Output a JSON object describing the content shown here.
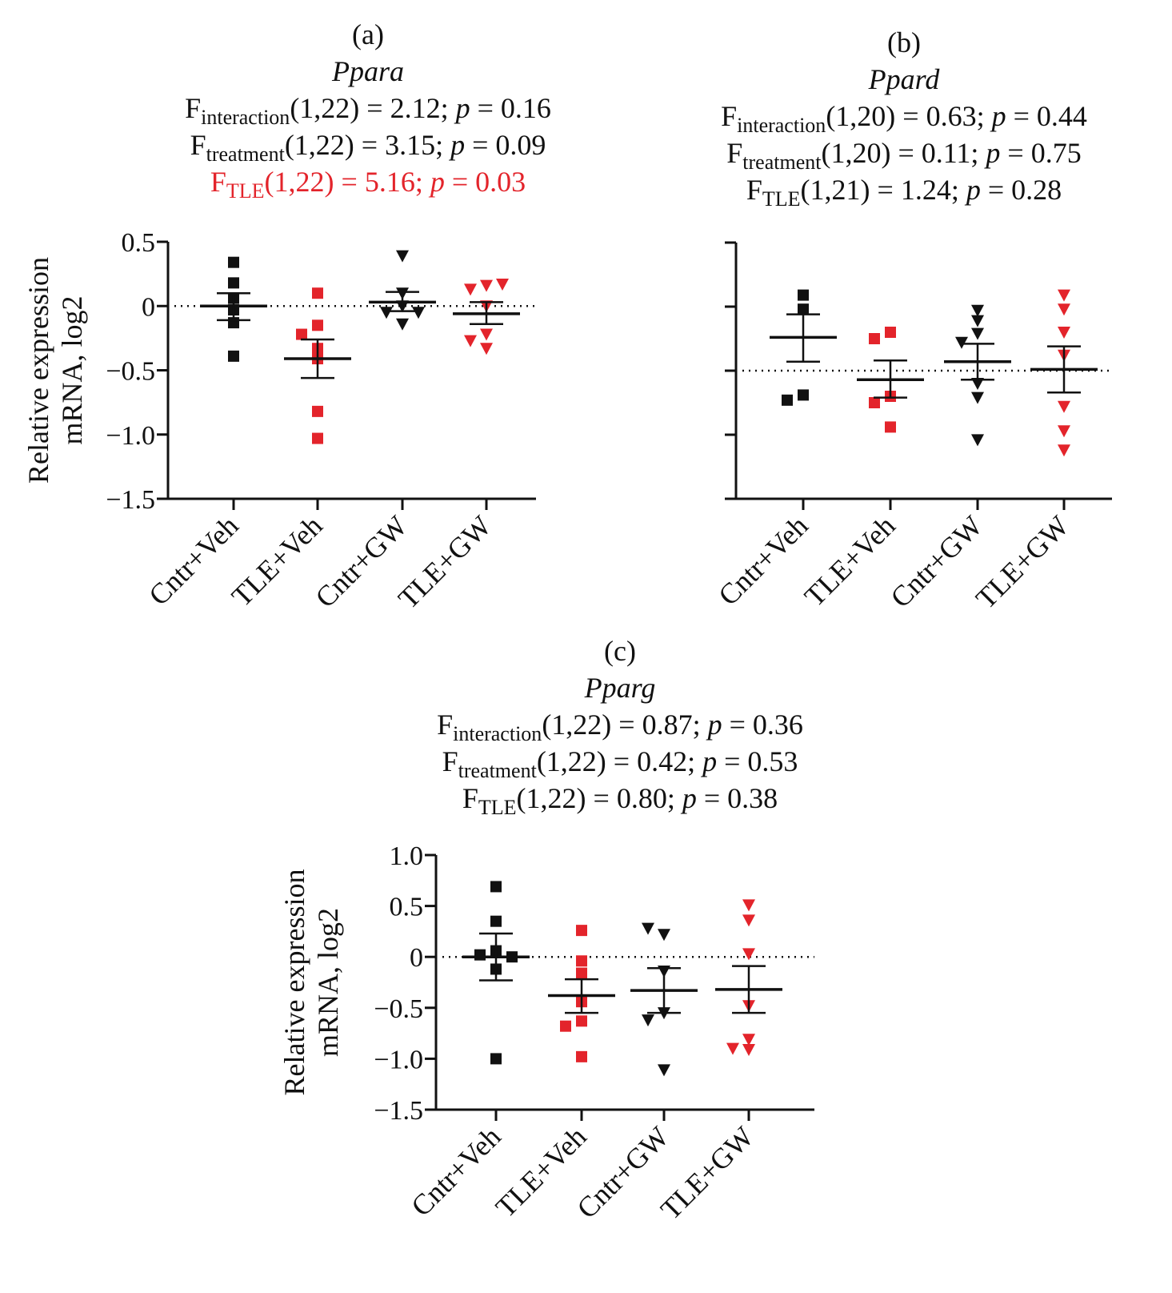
{
  "figure": {
    "panels": [
      {
        "label": "(a)",
        "gene": "Ppara",
        "stats": [
          {
            "name": "F",
            "sub": "interaction",
            "df": "(1,22)",
            "F": "2.12",
            "p": "0.16",
            "significant": false
          },
          {
            "name": "F",
            "sub": "treatment",
            "df": "(1,22)",
            "F": "3.15",
            "p": "0.09",
            "significant": false
          },
          {
            "name": "F",
            "sub": "TLE",
            "df": "(1,22)",
            "F": "5.16",
            "p": "0.03",
            "significant": true
          }
        ]
      },
      {
        "label": "(b)",
        "gene": "Ppard",
        "stats": [
          {
            "name": "F",
            "sub": "interaction",
            "df": "(1,20)",
            "F": "0.63",
            "p": "0.44",
            "significant": false
          },
          {
            "name": "F",
            "sub": "treatment",
            "df": "(1,20)",
            "F": "0.11",
            "p": "0.75",
            "significant": false
          },
          {
            "name": "F",
            "sub": "TLE",
            "df": "(1,21)",
            "F": "1.24",
            "p": "0.28",
            "significant": false
          }
        ]
      },
      {
        "label": "(c)",
        "gene": "Pparg",
        "stats": [
          {
            "name": "F",
            "sub": "interaction",
            "df": "(1,22)",
            "F": "0.87",
            "p": "0.36",
            "significant": false
          },
          {
            "name": "F",
            "sub": "treatment",
            "df": "(1,22)",
            "F": "0.42",
            "p": "0.53",
            "significant": false
          },
          {
            "name": "F",
            "sub": "TLE",
            "df": "(1,22)",
            "F": "0.80",
            "p": "0.38",
            "significant": false
          }
        ]
      }
    ],
    "colors": {
      "control": "#111111",
      "tle": "#e3242b",
      "significant_text": "#e3242b"
    }
  },
  "chart_data": [
    {
      "type": "scatter",
      "title": "Ppara",
      "panel": "(a)",
      "ylabel_line1": "Relative expression",
      "ylabel_line2": "mRNA, log2",
      "xlabel": "",
      "categories": [
        "Cntr+Veh",
        "TLE+Veh",
        "Cntr+GW",
        "TLE+GW"
      ],
      "ylim": [
        -1.5,
        0.5
      ],
      "yticks": [
        0.5,
        0,
        -1.0,
        -1.5,
        -0.5
      ],
      "ytick_labels": [
        "0.5",
        "0",
        "−1.0",
        "−1.5",
        "−0.5"
      ],
      "show_ytick_labels": true,
      "reference_line": 0,
      "series": [
        {
          "name": "Cntr+Veh",
          "marker": "square",
          "color": "control",
          "values": [
            0.34,
            0.18,
            0.06,
            -0.03,
            -0.13,
            -0.39
          ],
          "mean": 0.0,
          "sem_upper": 0.1,
          "sem_lower": -0.11
        },
        {
          "name": "TLE+Veh",
          "marker": "square",
          "color": "tle",
          "values": [
            0.1,
            -0.15,
            -0.22,
            -0.33,
            -0.41,
            -0.82,
            -1.03
          ],
          "mean": -0.41,
          "sem_upper": -0.26,
          "sem_lower": -0.56
        },
        {
          "name": "Cntr+GW",
          "marker": "triangle-down",
          "color": "control",
          "values": [
            0.39,
            0.1,
            0.0,
            -0.05,
            -0.05,
            -0.14
          ],
          "mean": 0.03,
          "sem_upper": 0.11,
          "sem_lower": -0.04
        },
        {
          "name": "TLE+GW",
          "marker": "triangle-down",
          "color": "tle",
          "values": [
            0.16,
            0.13,
            0.17,
            0.0,
            -0.22,
            -0.27,
            -0.33
          ],
          "mean": -0.06,
          "sem_upper": 0.03,
          "sem_lower": -0.14
        }
      ]
    },
    {
      "type": "scatter",
      "title": "Ppard",
      "panel": "(b)",
      "ylabel_line1": "",
      "ylabel_line2": "",
      "xlabel": "",
      "categories": [
        "Cntr+Veh",
        "TLE+Veh",
        "Cntr+GW",
        "TLE+GW"
      ],
      "ylim": [
        -1.0,
        1.0
      ],
      "yticks": [
        1.0,
        0.5,
        0,
        -0.5,
        -1.0
      ],
      "ytick_labels": [],
      "show_ytick_labels": false,
      "reference_line": 0,
      "series": [
        {
          "name": "Cntr+Veh",
          "marker": "square",
          "color": "control",
          "values": [
            0.59,
            0.48,
            -0.19,
            -0.23
          ],
          "mean": 0.26,
          "sem_upper": 0.44,
          "sem_lower": 0.07
        },
        {
          "name": "TLE+Veh",
          "marker": "square",
          "color": "tle",
          "values": [
            0.3,
            0.25,
            -0.2,
            -0.25,
            -0.44
          ],
          "mean": -0.07,
          "sem_upper": 0.08,
          "sem_lower": -0.21
        },
        {
          "name": "Cntr+GW",
          "marker": "triangle-down",
          "color": "control",
          "values": [
            0.47,
            0.39,
            0.29,
            0.22,
            -0.1,
            -0.21,
            -0.54
          ],
          "mean": 0.07,
          "sem_upper": 0.21,
          "sem_lower": -0.07
        },
        {
          "name": "TLE+GW",
          "marker": "triangle-down",
          "color": "tle",
          "values": [
            0.59,
            0.48,
            0.3,
            0.12,
            -0.28,
            -0.47,
            -0.62
          ],
          "mean": 0.01,
          "sem_upper": 0.19,
          "sem_lower": -0.17
        }
      ]
    },
    {
      "type": "scatter",
      "title": "Pparg",
      "panel": "(c)",
      "ylabel_line1": "Relative expression",
      "ylabel_line2": "mRNA, log2",
      "xlabel": "",
      "categories": [
        "Cntr+Veh",
        "TLE+Veh",
        "Cntr+GW",
        "TLE+GW"
      ],
      "ylim": [
        -1.5,
        1.0
      ],
      "yticks": [
        1.0,
        0.5,
        0,
        -0.5,
        -1.0,
        -1.5
      ],
      "ytick_labels": [
        "1.0",
        "0.5",
        "0",
        "−0.5",
        "−1.0",
        "−1.5"
      ],
      "show_ytick_labels": true,
      "reference_line": 0,
      "series": [
        {
          "name": "Cntr+Veh",
          "marker": "square",
          "color": "control",
          "values": [
            0.69,
            0.35,
            0.06,
            0.02,
            0.0,
            -0.12,
            -1.0
          ],
          "mean": 0.0,
          "sem_upper": 0.23,
          "sem_lower": -0.23
        },
        {
          "name": "TLE+Veh",
          "marker": "square",
          "color": "tle",
          "values": [
            0.26,
            -0.04,
            -0.16,
            -0.44,
            -0.63,
            -0.68,
            -0.98
          ],
          "mean": -0.38,
          "sem_upper": -0.22,
          "sem_lower": -0.55
        },
        {
          "name": "Cntr+GW",
          "marker": "triangle-down",
          "color": "control",
          "values": [
            0.22,
            0.28,
            -0.14,
            -0.55,
            -0.62,
            -1.11
          ],
          "mean": -0.33,
          "sem_upper": -0.11,
          "sem_lower": -0.55
        },
        {
          "name": "TLE+GW",
          "marker": "triangle-down",
          "color": "tle",
          "values": [
            0.51,
            0.36,
            0.03,
            -0.48,
            -0.81,
            -0.91,
            -0.9
          ],
          "mean": -0.32,
          "sem_upper": -0.09,
          "sem_lower": -0.55
        }
      ]
    }
  ]
}
